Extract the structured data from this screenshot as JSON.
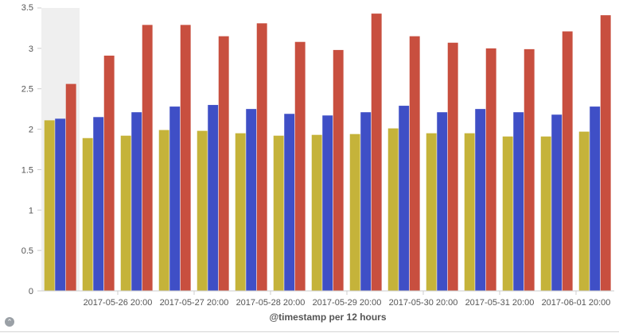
{
  "chart_data": {
    "type": "bar",
    "title": "",
    "xlabel": "@timestamp per 12 hours",
    "ylabel": "",
    "ylim": [
      0,
      3.5
    ],
    "yticks": [
      0,
      0.5,
      1,
      1.5,
      2,
      2.5,
      3,
      3.5
    ],
    "ytick_labels": [
      "0",
      "0.5",
      "1",
      "1.5",
      "2",
      "2.5",
      "3",
      "3.5"
    ],
    "grid": false,
    "x_tick_labels": [
      {
        "label": "2017-05-26 20:00",
        "index": 2
      },
      {
        "label": "2017-05-27 20:00",
        "index": 4
      },
      {
        "label": "2017-05-28 20:00",
        "index": 6
      },
      {
        "label": "2017-05-29 20:00",
        "index": 8
      },
      {
        "label": "2017-05-30 20:00",
        "index": 10
      },
      {
        "label": "2017-05-31 20:00",
        "index": 12
      },
      {
        "label": "2017-06-01 20:00",
        "index": 14
      }
    ],
    "highlighted_bucket_index": 0,
    "series": [
      {
        "color": "#c5b33a",
        "values": [
          2.11,
          1.89,
          1.92,
          1.99,
          1.98,
          1.95,
          1.92,
          1.93,
          1.94,
          2.01,
          1.95,
          1.95,
          1.91,
          1.91,
          1.97
        ]
      },
      {
        "color": "#3f4fc6",
        "values": [
          2.13,
          2.15,
          2.21,
          2.28,
          2.3,
          2.25,
          2.19,
          2.17,
          2.21,
          2.29,
          2.21,
          2.25,
          2.21,
          2.18,
          2.28
        ]
      },
      {
        "color": "#c84f3f",
        "values": [
          2.56,
          2.91,
          3.29,
          3.29,
          3.15,
          3.31,
          3.08,
          2.98,
          3.43,
          3.15,
          3.07,
          3.0,
          2.99,
          3.21,
          3.41
        ]
      }
    ]
  },
  "ui": {
    "collapse_glyph": "⌃"
  }
}
